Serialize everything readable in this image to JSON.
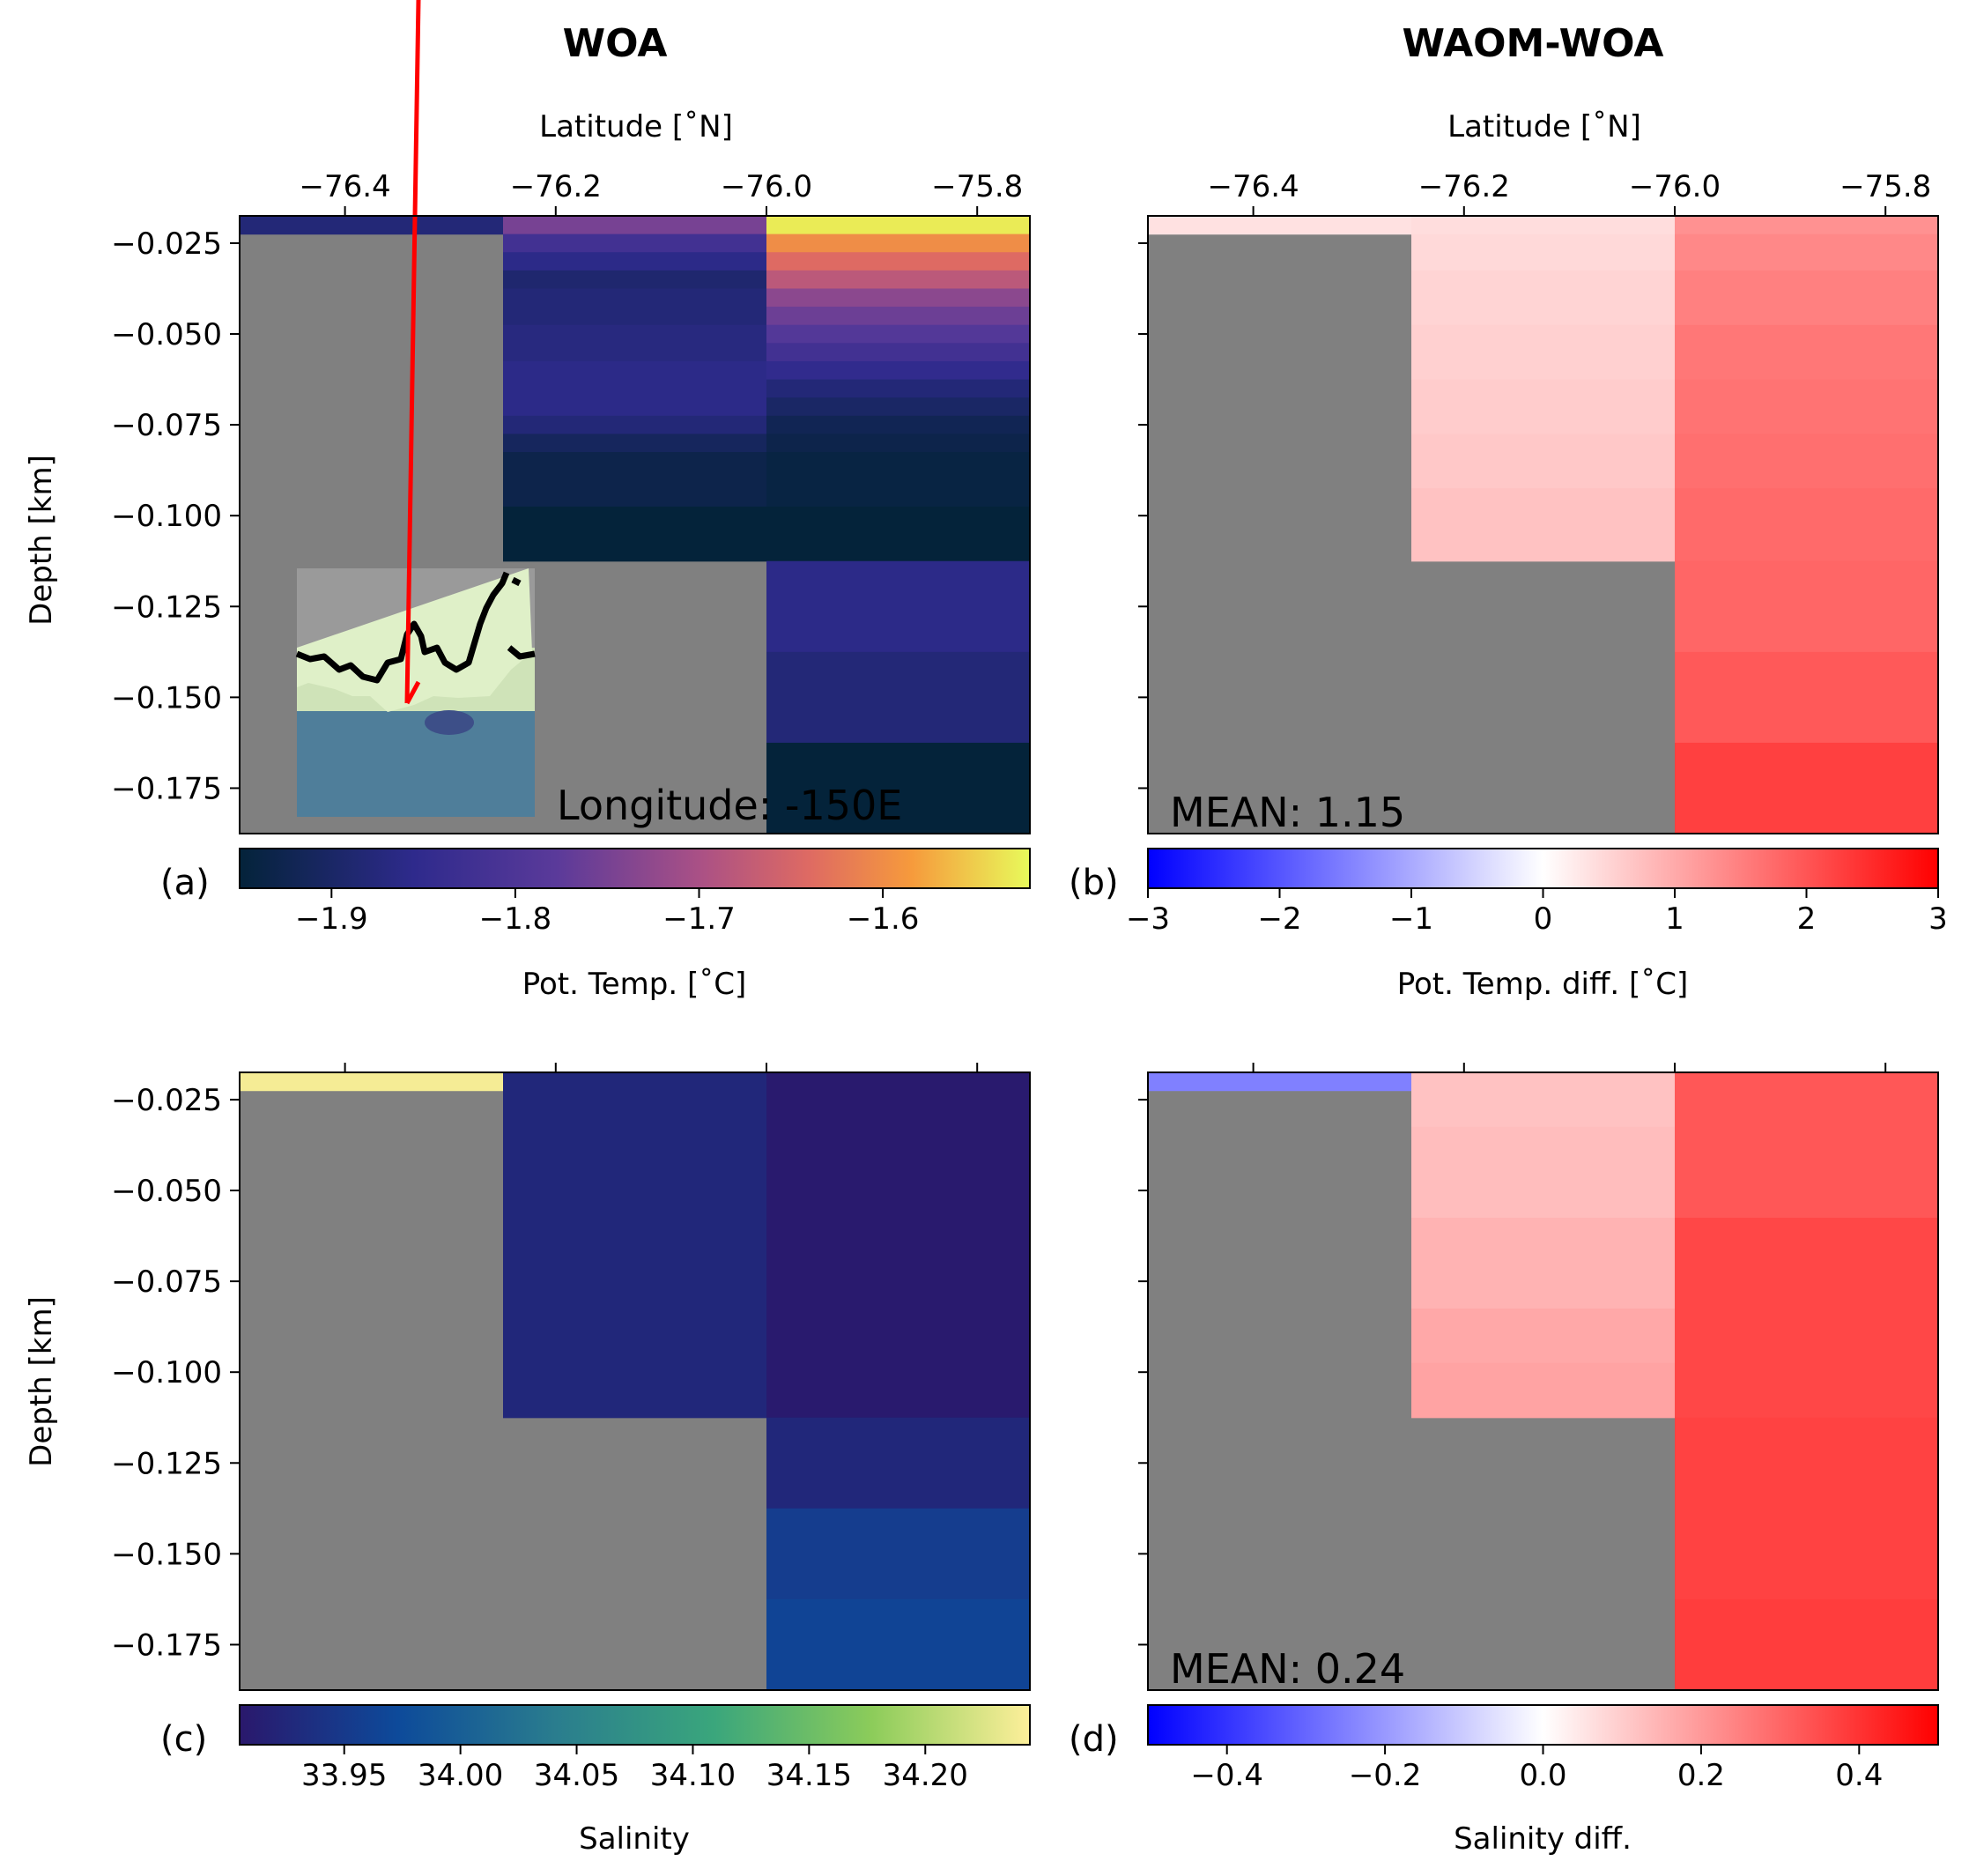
{
  "figure": {
    "col_titles": [
      "WOA",
      "WAOM-WOA"
    ],
    "top_xlabel": "Latitude [˚N]",
    "lat_ticks": [
      "−76.4",
      "−76.2",
      "−76.0",
      "−75.8"
    ],
    "ylabel": "Depth [km]",
    "depth_ticks": [
      "−0.025",
      "−0.050",
      "−0.075",
      "−0.100",
      "−0.125",
      "−0.150",
      "−0.175"
    ]
  },
  "chart_data": [
    {
      "id": "a",
      "type": "heatmap",
      "panel_label": "(a)",
      "title": "WOA",
      "xlabel": "Latitude [˚N]",
      "ylabel": "Depth [km]",
      "xlim": [
        -76.5,
        -75.75
      ],
      "ylim": [
        -0.1875,
        -0.0175
      ],
      "x_edges": [
        -76.5,
        -76.25,
        -76.0,
        -75.75
      ],
      "colormap": "thermal",
      "clim": [
        -1.95,
        -1.52
      ],
      "colorbar_label": "Pot. Temp. [˚C]",
      "colorbar_ticks": [
        "−1.9",
        "−1.8",
        "−1.7",
        "−1.6"
      ],
      "colorbar_tick_values": [
        -1.9,
        -1.8,
        -1.7,
        -1.6
      ],
      "annotation": "Longitude: -150E",
      "inset_map": "location-map-icon",
      "columns": [
        {
          "lat_range": [
            -76.5,
            -76.25
          ],
          "layers": [
            {
              "top": -0.0175,
              "bottom": -0.0225,
              "value": -1.88
            }
          ]
        },
        {
          "lat_range": [
            -76.25,
            -76.0
          ],
          "layers": [
            {
              "top": -0.0175,
              "bottom": -0.0225,
              "value": -1.75
            },
            {
              "top": -0.0225,
              "bottom": -0.0275,
              "value": -1.82
            },
            {
              "top": -0.0275,
              "bottom": -0.0325,
              "value": -1.86
            },
            {
              "top": -0.0325,
              "bottom": -0.0375,
              "value": -1.89
            },
            {
              "top": -0.0375,
              "bottom": -0.0475,
              "value": -1.88
            },
            {
              "top": -0.0475,
              "bottom": -0.0575,
              "value": -1.87
            },
            {
              "top": -0.0575,
              "bottom": -0.0725,
              "value": -1.86
            },
            {
              "top": -0.0725,
              "bottom": -0.0775,
              "value": -1.88
            },
            {
              "top": -0.0775,
              "bottom": -0.0825,
              "value": -1.91
            },
            {
              "top": -0.0825,
              "bottom": -0.0975,
              "value": -1.93
            },
            {
              "top": -0.0975,
              "bottom": -0.1125,
              "value": -1.95
            }
          ]
        },
        {
          "lat_range": [
            -76.0,
            -75.75
          ],
          "layers": [
            {
              "top": -0.0175,
              "bottom": -0.0225,
              "value": -1.53
            },
            {
              "top": -0.0225,
              "bottom": -0.0275,
              "value": -1.6
            },
            {
              "top": -0.0275,
              "bottom": -0.0325,
              "value": -1.64
            },
            {
              "top": -0.0325,
              "bottom": -0.0375,
              "value": -1.68
            },
            {
              "top": -0.0375,
              "bottom": -0.0425,
              "value": -1.73
            },
            {
              "top": -0.0425,
              "bottom": -0.0475,
              "value": -1.76
            },
            {
              "top": -0.0475,
              "bottom": -0.0525,
              "value": -1.79
            },
            {
              "top": -0.0525,
              "bottom": -0.0575,
              "value": -1.82
            },
            {
              "top": -0.0575,
              "bottom": -0.0625,
              "value": -1.85
            },
            {
              "top": -0.0625,
              "bottom": -0.0675,
              "value": -1.88
            },
            {
              "top": -0.0675,
              "bottom": -0.0725,
              "value": -1.9
            },
            {
              "top": -0.0725,
              "bottom": -0.0775,
              "value": -1.92
            },
            {
              "top": -0.0775,
              "bottom": -0.0825,
              "value": -1.93
            },
            {
              "top": -0.0825,
              "bottom": -0.0975,
              "value": -1.94
            },
            {
              "top": -0.0975,
              "bottom": -0.1125,
              "value": -1.95
            },
            {
              "top": -0.1125,
              "bottom": -0.1375,
              "value": -1.86
            },
            {
              "top": -0.1375,
              "bottom": -0.1625,
              "value": -1.88
            },
            {
              "top": -0.1625,
              "bottom": -0.1875,
              "value": -1.95
            }
          ]
        }
      ]
    },
    {
      "id": "b",
      "type": "heatmap",
      "panel_label": "(b)",
      "title": "WAOM-WOA",
      "xlabel": "Latitude [˚N]",
      "xlim": [
        -76.5,
        -75.75
      ],
      "ylim": [
        -0.1875,
        -0.0175
      ],
      "colormap": "bwr",
      "clim": [
        -3,
        3
      ],
      "colorbar_label": "Pot. Temp. diff. [˚C]",
      "colorbar_ticks": [
        "−3",
        "−2",
        "−1",
        "0",
        "1",
        "2",
        "3"
      ],
      "colorbar_tick_values": [
        -3,
        -2,
        -1,
        0,
        1,
        2,
        3
      ],
      "annotation": "MEAN: 1.15",
      "columns": [
        {
          "lat_range": [
            -76.5,
            -76.25
          ],
          "layers": [
            {
              "top": -0.0175,
              "bottom": -0.0225,
              "value": 0.35
            }
          ]
        },
        {
          "lat_range": [
            -76.25,
            -76.0
          ],
          "layers": [
            {
              "top": -0.0175,
              "bottom": -0.0225,
              "value": 0.4
            },
            {
              "top": -0.0225,
              "bottom": -0.0325,
              "value": 0.45
            },
            {
              "top": -0.0325,
              "bottom": -0.0475,
              "value": 0.5
            },
            {
              "top": -0.0475,
              "bottom": -0.0625,
              "value": 0.55
            },
            {
              "top": -0.0625,
              "bottom": -0.0775,
              "value": 0.6
            },
            {
              "top": -0.0775,
              "bottom": -0.0925,
              "value": 0.65
            },
            {
              "top": -0.0925,
              "bottom": -0.1125,
              "value": 0.72
            }
          ]
        },
        {
          "lat_range": [
            -76.0,
            -75.75
          ],
          "layers": [
            {
              "top": -0.0175,
              "bottom": -0.0225,
              "value": 1.3
            },
            {
              "top": -0.0225,
              "bottom": -0.0325,
              "value": 1.4
            },
            {
              "top": -0.0325,
              "bottom": -0.0475,
              "value": 1.5
            },
            {
              "top": -0.0475,
              "bottom": -0.0625,
              "value": 1.6
            },
            {
              "top": -0.0625,
              "bottom": -0.0775,
              "value": 1.65
            },
            {
              "top": -0.0775,
              "bottom": -0.0925,
              "value": 1.7
            },
            {
              "top": -0.0925,
              "bottom": -0.1125,
              "value": 1.75
            },
            {
              "top": -0.1125,
              "bottom": -0.1375,
              "value": 1.8
            },
            {
              "top": -0.1375,
              "bottom": -0.1625,
              "value": 1.95
            },
            {
              "top": -0.1625,
              "bottom": -0.1875,
              "value": 2.25
            }
          ]
        }
      ]
    },
    {
      "id": "c",
      "type": "heatmap",
      "panel_label": "(c)",
      "ylabel": "Depth [km]",
      "xlim": [
        -76.5,
        -75.75
      ],
      "ylim": [
        -0.1875,
        -0.0175
      ],
      "colormap": "haline",
      "clim": [
        33.905,
        34.245
      ],
      "colorbar_label": "Salinity",
      "colorbar_ticks": [
        "33.95",
        "34.00",
        "34.05",
        "34.10",
        "34.15",
        "34.20"
      ],
      "colorbar_tick_values": [
        33.95,
        34.0,
        34.05,
        34.1,
        34.15,
        34.2
      ],
      "columns": [
        {
          "lat_range": [
            -76.5,
            -76.25
          ],
          "layers": [
            {
              "top": -0.0175,
              "bottom": -0.0225,
              "value": 34.24
            }
          ]
        },
        {
          "lat_range": [
            -76.25,
            -76.0
          ],
          "layers": [
            {
              "top": -0.0175,
              "bottom": -0.1125,
              "value": 33.925
            }
          ]
        },
        {
          "lat_range": [
            -76.0,
            -75.75
          ],
          "layers": [
            {
              "top": -0.0175,
              "bottom": -0.1125,
              "value": 33.908
            },
            {
              "top": -0.1125,
              "bottom": -0.1375,
              "value": 33.925
            },
            {
              "top": -0.1375,
              "bottom": -0.1625,
              "value": 33.955
            },
            {
              "top": -0.1625,
              "bottom": -0.1875,
              "value": 33.965
            }
          ]
        }
      ]
    },
    {
      "id": "d",
      "type": "heatmap",
      "panel_label": "(d)",
      "xlim": [
        -76.5,
        -75.75
      ],
      "ylim": [
        -0.1875,
        -0.0175
      ],
      "colormap": "bwr",
      "clim": [
        -0.5,
        0.5
      ],
      "colorbar_label": "Salinity diff.",
      "colorbar_ticks": [
        "−0.4",
        "−0.2",
        "0.0",
        "0.2",
        "0.4"
      ],
      "colorbar_tick_values": [
        -0.4,
        -0.2,
        0.0,
        0.2,
        0.4
      ],
      "annotation": "MEAN: 0.24",
      "columns": [
        {
          "lat_range": [
            -76.5,
            -76.25
          ],
          "layers": [
            {
              "top": -0.0175,
              "bottom": -0.0225,
              "value": -0.25
            }
          ]
        },
        {
          "lat_range": [
            -76.25,
            -76.0
          ],
          "layers": [
            {
              "top": -0.0175,
              "bottom": -0.0325,
              "value": 0.12
            },
            {
              "top": -0.0325,
              "bottom": -0.0575,
              "value": 0.13
            },
            {
              "top": -0.0575,
              "bottom": -0.0825,
              "value": 0.15
            },
            {
              "top": -0.0825,
              "bottom": -0.0975,
              "value": 0.17
            },
            {
              "top": -0.0975,
              "bottom": -0.1125,
              "value": 0.18
            }
          ]
        },
        {
          "lat_range": [
            -76.0,
            -75.75
          ],
          "layers": [
            {
              "top": -0.0175,
              "bottom": -0.0575,
              "value": 0.33
            },
            {
              "top": -0.0575,
              "bottom": -0.1125,
              "value": 0.36
            },
            {
              "top": -0.1125,
              "bottom": -0.1625,
              "value": 0.37
            },
            {
              "top": -0.1625,
              "bottom": -0.1875,
              "value": 0.38
            }
          ]
        }
      ]
    }
  ]
}
